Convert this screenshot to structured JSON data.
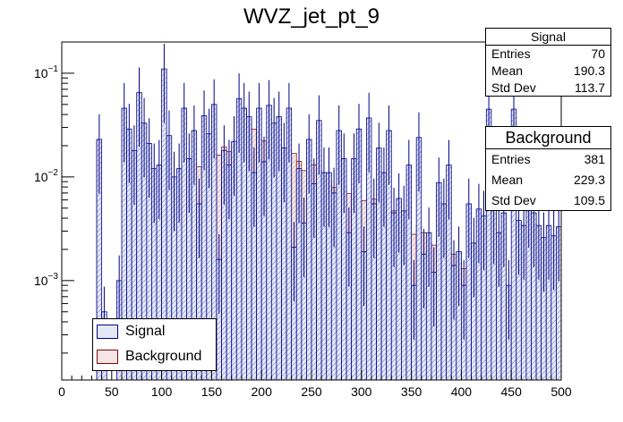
{
  "chart_data": {
    "type": "bar",
    "title": "WVZ_jet_pt_9",
    "xlabel": "",
    "ylabel": "",
    "xlim": [
      0,
      500
    ],
    "ylim_log": [
      0.00011,
      0.2
    ],
    "yscale": "log",
    "x_ticks": [
      0,
      50,
      100,
      150,
      200,
      250,
      300,
      350,
      400,
      450,
      500
    ],
    "y_ticks": [
      {
        "value": 0.1,
        "base": "10",
        "exp": "−1"
      },
      {
        "value": 0.01,
        "base": "10",
        "exp": "−2"
      },
      {
        "value": 0.001,
        "base": "10",
        "exp": "−3"
      }
    ],
    "bin_width": 5,
    "series": [
      {
        "name": "Signal",
        "color": "#00008b",
        "fill": "#d8dcf0",
        "bins_x_low": [
          35,
          40,
          55,
          60,
          65,
          70,
          75,
          80,
          85,
          90,
          95,
          100,
          105,
          110,
          115,
          120,
          125,
          130,
          135,
          140,
          145,
          150,
          155,
          160,
          165,
          170,
          175,
          180,
          185,
          190,
          195,
          200,
          205,
          210,
          215,
          220,
          225,
          230,
          235,
          240,
          245,
          250,
          255,
          260,
          265,
          270,
          275,
          280,
          285,
          290,
          295,
          300,
          305,
          310,
          315,
          320,
          325,
          330,
          335,
          340,
          345,
          350,
          355,
          360,
          365,
          370,
          375,
          380,
          385,
          390,
          395,
          400,
          405,
          410,
          415,
          420,
          425,
          430,
          435,
          440,
          445,
          450,
          455,
          460,
          465,
          470,
          475,
          480,
          485,
          490,
          495
        ],
        "values": [
          0.023,
          0.0005,
          0.001,
          0.046,
          0.029,
          0.018,
          0.065,
          0.033,
          0.021,
          0.012,
          0.013,
          0.11,
          0.025,
          0.01,
          0.012,
          0.046,
          0.015,
          0.028,
          0.0055,
          0.039,
          0.026,
          0.05,
          0.0016,
          0.018,
          0.013,
          0.022,
          0.057,
          0.046,
          0.038,
          0.011,
          0.046,
          0.014,
          0.049,
          0.033,
          0.038,
          0.019,
          0.046,
          0.0021,
          0.012,
          0.0036,
          0.023,
          0.0086,
          0.035,
          0.011,
          0.011,
          0.007,
          0.028,
          0.015,
          0.0029,
          0.015,
          0.029,
          0.0019,
          0.037,
          0.0055,
          0.019,
          0.011,
          0.028,
          0.0045,
          0.0062,
          0.0047,
          0.013,
          0.0009,
          0.024,
          0.0018,
          0.0029,
          0.0012,
          0.0088,
          0.0055,
          0.013,
          0.0014,
          0.0019,
          0.0009,
          0.0055,
          0.0023,
          0.0049,
          0.0042,
          0.045,
          0.0048,
          0.0029,
          0.0045,
          0.0009,
          0.045,
          0.0038,
          0.0034,
          0.0069,
          0.0045,
          0.0034,
          0.0026,
          0.0034,
          0.0027,
          0.0033
        ]
      },
      {
        "name": "Background",
        "color": "#8b0000",
        "fill": "#f2e0e0",
        "bins_x_low": [
          35,
          40,
          55,
          60,
          65,
          70,
          75,
          80,
          85,
          90,
          95,
          100,
          105,
          110,
          115,
          120,
          125,
          130,
          135,
          140,
          145,
          150,
          155,
          160,
          165,
          170,
          175,
          180,
          185,
          190,
          195,
          200,
          205,
          210,
          215,
          220,
          225,
          230,
          235,
          240,
          245,
          250,
          255,
          260,
          265,
          270,
          275,
          280,
          285,
          290,
          295,
          300,
          305,
          310,
          315,
          320,
          325,
          330,
          335,
          340,
          345,
          350,
          355,
          360,
          365,
          370,
          375,
          380,
          385,
          390,
          395,
          400,
          405,
          410,
          415,
          420,
          425,
          430,
          435,
          440,
          445,
          450,
          455,
          460,
          465,
          470,
          475,
          480,
          485,
          490,
          495
        ],
        "values": [
          0.022,
          0.0003,
          0.0006,
          0.0013,
          0.0022,
          0.0016,
          0.0031,
          0.0042,
          0.0055,
          0.0048,
          0.0062,
          0.0068,
          0.0059,
          0.0084,
          0.0085,
          0.0076,
          0.0118,
          0.0139,
          0.0125,
          0.0113,
          0.0145,
          0.0145,
          0.0162,
          0.0195,
          0.0175,
          0.0213,
          0.0245,
          0.0442,
          0.0295,
          0.0289,
          0.0239,
          0.0222,
          0.0215,
          0.0263,
          0.0193,
          0.0176,
          0.0147,
          0.0169,
          0.0141,
          0.0115,
          0.0122,
          0.0131,
          0.0091,
          0.0078,
          0.0089,
          0.0079,
          0.0092,
          0.0082,
          0.0069,
          0.0066,
          0.0052,
          0.0059,
          0.0048,
          0.0061,
          0.0052,
          0.0045,
          0.0039,
          0.0047,
          0.0042,
          0.0039,
          0.0036,
          0.0028,
          0.0034,
          0.0029,
          0.0023,
          0.0022,
          0.0026,
          0.0021,
          0.0015,
          0.0018,
          0.0015,
          0.0013,
          0.0017,
          0.0011,
          0.0014,
          0.0013,
          0.0011,
          0.0012,
          0.0009,
          0.0011,
          0.0008,
          0.0009,
          0.0007,
          0.0006,
          0.0008,
          0.0007,
          0.0005,
          0.0004,
          0.0005,
          0.0004,
          0.0003
        ]
      }
    ]
  },
  "stats": {
    "signal": {
      "title": "Signal",
      "entries_label": "Entries",
      "entries": "70",
      "mean_label": "Mean",
      "mean": "190.3",
      "stddev_label": "Std Dev",
      "stddev": "113.7"
    },
    "background": {
      "title": "Background",
      "entries_label": "Entries",
      "entries": "381",
      "mean_label": "Mean",
      "mean": "229.3",
      "stddev_label": "Std Dev",
      "stddev": "109.5"
    }
  },
  "legend": {
    "signal_label": "Signal",
    "background_label": "Background"
  }
}
